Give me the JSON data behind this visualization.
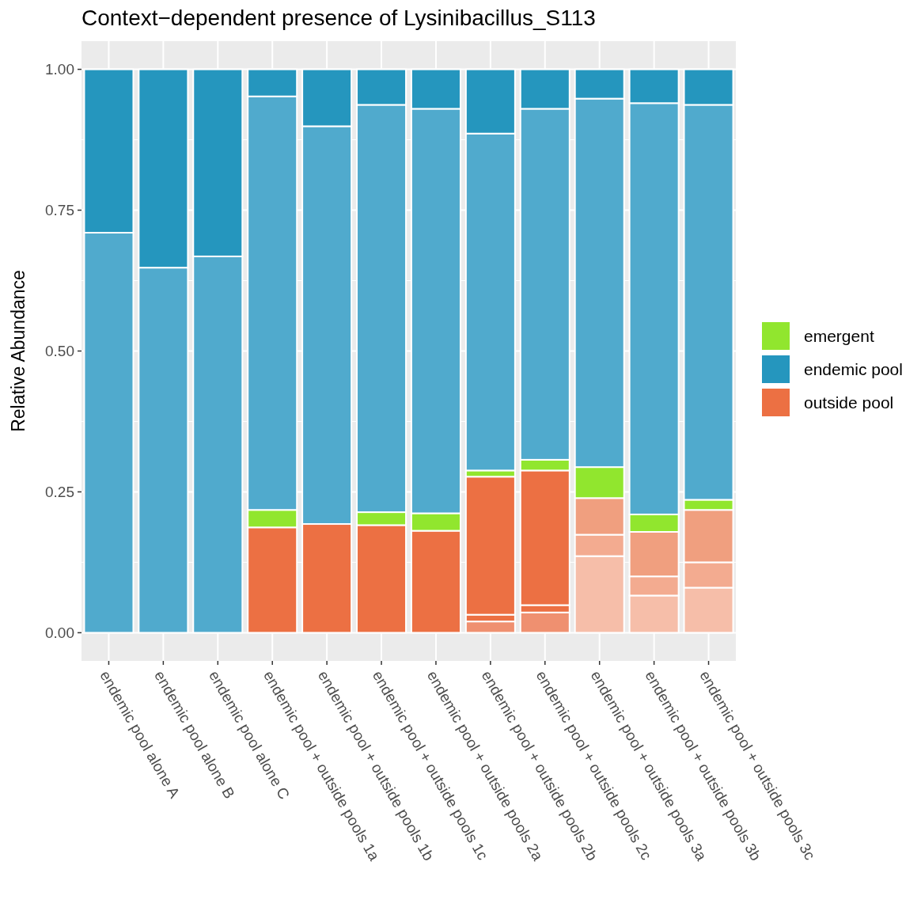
{
  "chart_data": {
    "type": "bar",
    "stacked": true,
    "title": "Context−dependent presence of Lysinibacillus_S113",
    "ylabel": "Relative Abundance",
    "categories": [
      "endemic pool alone A",
      "endemic pool alone B",
      "endemic pool alone C",
      "endemic pool + outside pools 1a",
      "endemic pool + outside pools 1b",
      "endemic pool + outside pools 1c",
      "endemic pool + outside pools 2a",
      "endemic pool + outside pools 2b",
      "endemic pool + outside pools 2c",
      "endemic pool + outside pools 3a",
      "endemic pool + outside pools 3b",
      "endemic pool + outside pools 3c"
    ],
    "series": [
      {
        "colors": [
          null,
          null,
          null,
          null,
          null,
          null,
          null,
          "#ef9070",
          "#ef9070",
          "#f6bea9",
          "#f6bea9",
          "#f6bea9"
        ],
        "values": [
          null,
          null,
          null,
          null,
          null,
          null,
          null,
          0.02,
          0.036,
          0.136,
          0.066,
          0.08
        ]
      },
      {
        "colors": [
          null,
          null,
          null,
          null,
          null,
          null,
          null,
          "#ec7043",
          "#ec7043",
          "#f3ab90",
          "#f3ab90",
          "#f3ab90"
        ],
        "values": [
          null,
          null,
          null,
          null,
          null,
          null,
          null,
          0.012,
          0.013,
          0.038,
          0.034,
          0.045
        ]
      },
      {
        "name": "outside pool",
        "color": "#ec7043",
        "colors": [
          null,
          null,
          null,
          "#ec7043",
          "#ec7043",
          "#ec7043",
          "#ec7043",
          "#ec7043",
          "#ec7043",
          "#f09f7f",
          "#f09f7f",
          "#f09f7f"
        ],
        "values": [
          null,
          null,
          null,
          0.187,
          0.193,
          0.191,
          0.181,
          0.245,
          0.239,
          0.065,
          0.079,
          0.093
        ]
      },
      {
        "name": "emergent",
        "color": "#91e62e",
        "values": [
          null,
          null,
          null,
          0.031,
          null,
          0.023,
          0.031,
          0.011,
          0.019,
          0.055,
          0.031,
          0.018
        ]
      },
      {
        "color": "#50aacd",
        "values": [
          0.71,
          0.648,
          0.668,
          0.734,
          0.706,
          0.723,
          0.718,
          0.598,
          0.623,
          0.654,
          0.73,
          0.701
        ]
      },
      {
        "name": "endemic pool",
        "color": "#2596be",
        "values": [
          0.29,
          0.352,
          0.332,
          0.048,
          0.101,
          0.063,
          0.07,
          0.114,
          0.07,
          0.052,
          0.06,
          0.063
        ]
      }
    ],
    "ylim": [
      -0.05,
      1.05
    ],
    "yticks": [
      {
        "value": 0,
        "label": "0.00"
      },
      {
        "value": 0.25,
        "label": "0.25"
      },
      {
        "value": 0.5,
        "label": "0.50"
      },
      {
        "value": 0.75,
        "label": "0.75"
      },
      {
        "value": 1,
        "label": "1.00"
      }
    ],
    "grid": true,
    "legend": "right"
  }
}
